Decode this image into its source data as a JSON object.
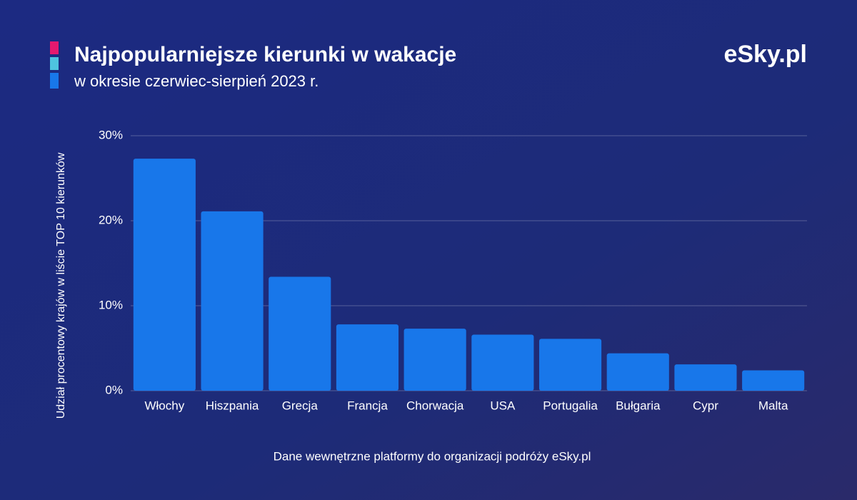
{
  "chart_data": {
    "type": "bar",
    "title": "Najpopularniejsze kierunki w wakacje",
    "subtitle": "w okresie czerwiec-sierpień 2023 r.",
    "logo": "eSky.pl",
    "y_label": "Udział procentowy krajów w liście TOP 10 kierunków",
    "source": "Dane wewnętrzne platformy do organizacji podróży eSky.pl",
    "categories": [
      "Włochy",
      "Hiszpania",
      "Grecja",
      "Francja",
      "Chorwacja",
      "USA",
      "Portugalia",
      "Bułgaria",
      "Cypr",
      "Malta"
    ],
    "values": [
      27.3,
      21.1,
      13.4,
      7.8,
      7.3,
      6.6,
      6.1,
      4.4,
      3.1,
      2.4
    ],
    "color": "#1877ea",
    "ylim": [
      0,
      30
    ],
    "yticks": [
      {
        "value": 0,
        "label": "0%"
      },
      {
        "value": 10,
        "label": "10%"
      },
      {
        "value": 20,
        "label": "20%"
      },
      {
        "value": 30,
        "label": "30%"
      }
    ],
    "grid": true
  }
}
